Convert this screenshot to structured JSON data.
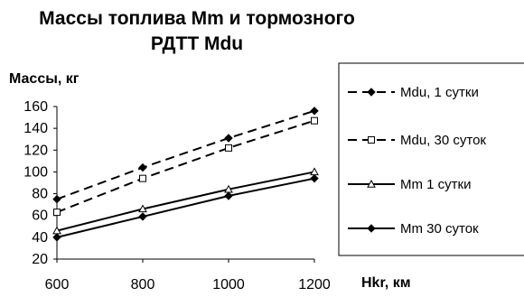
{
  "chart_data": {
    "type": "line",
    "title_line1": "Массы топлива Mm и тормозного",
    "title_line2": "РДТТ Mdu",
    "ylabel": "Массы, кг",
    "xlabel": "Hkr, км",
    "x": [
      600,
      800,
      1000,
      1200
    ],
    "xlim": [
      600,
      1200
    ],
    "ylim": [
      20,
      160
    ],
    "yticks": [
      20,
      40,
      60,
      80,
      100,
      120,
      140,
      160
    ],
    "xticks": [
      600,
      800,
      1000,
      1200
    ],
    "grid": false,
    "legend_position": "right",
    "series": [
      {
        "name": "Mdu, 1 сутки",
        "values": [
          75,
          104,
          131,
          156
        ],
        "dash": true,
        "marker": "diamond-filled",
        "color": "#000000"
      },
      {
        "name": "Mdu, 30 суток",
        "values": [
          63,
          94,
          122,
          147
        ],
        "dash": true,
        "marker": "square-open",
        "color": "#000000"
      },
      {
        "name": "Mm 1 сутки",
        "values": [
          46,
          66,
          84,
          100
        ],
        "dash": false,
        "marker": "triangle-open",
        "color": "#000000"
      },
      {
        "name": "Mm 30 суток",
        "values": [
          40,
          59,
          78,
          94
        ],
        "dash": false,
        "marker": "diamond-filled",
        "color": "#000000"
      }
    ]
  }
}
